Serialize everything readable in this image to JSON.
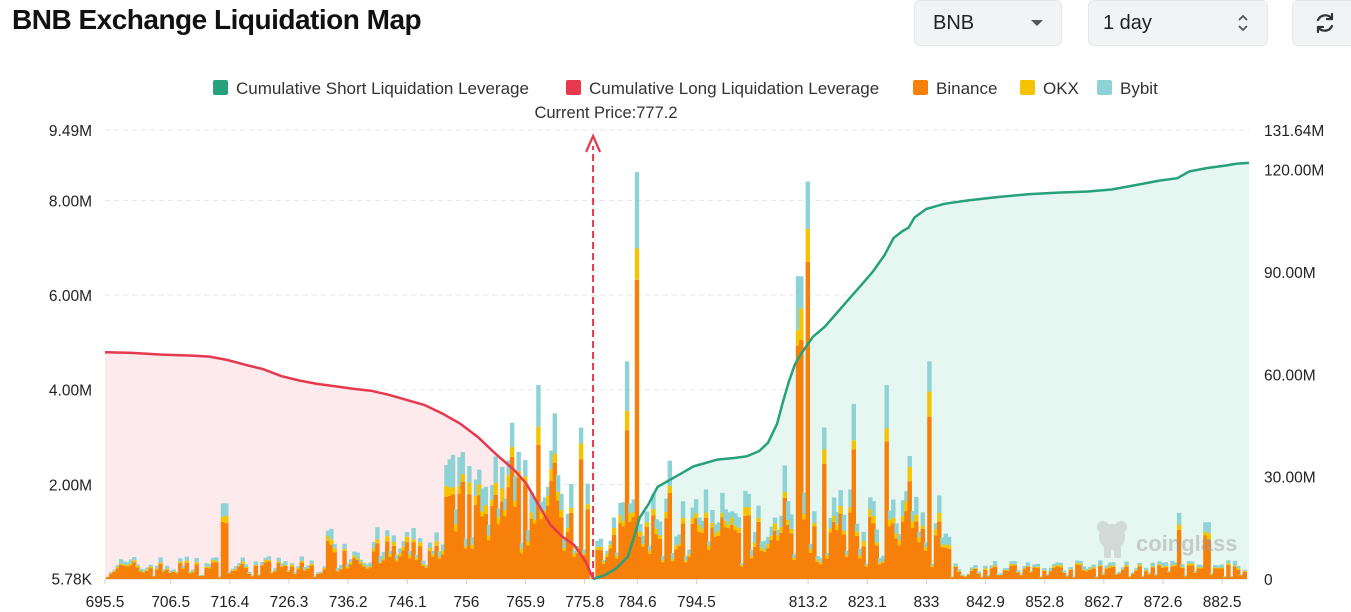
{
  "header": {
    "title": "BNB Exchange Liquidation Map",
    "coin_select": "BNB",
    "period_select": "1 day"
  },
  "colors": {
    "short": "#26a17b",
    "long": "#e8384f",
    "binance": "#f7800a",
    "okx": "#f5c400",
    "bybit": "#8dd3d6"
  },
  "watermark": "coinglass",
  "chart_data": {
    "type": "bar",
    "current_price_label": "Current Price:777.2",
    "current_price": 777.2,
    "legend": [
      {
        "key": "short",
        "label": "Cumulative Short Liquidation Leverage",
        "color": "#26a17b"
      },
      {
        "key": "long",
        "label": "Cumulative Long Liquidation Leverage",
        "color": "#e8384f"
      },
      {
        "key": "binance",
        "label": "Binance",
        "color": "#f7800a"
      },
      {
        "key": "okx",
        "label": "OKX",
        "color": "#f5c400"
      },
      {
        "key": "bybit",
        "label": "Bybit",
        "color": "#8dd3d6"
      }
    ],
    "x_range": [
      695.5,
      887.0
    ],
    "x_ticks": [
      "695.5",
      "706.5",
      "716.4",
      "726.3",
      "736.2",
      "746.1",
      "756",
      "765.9",
      "775.8",
      "784.6",
      "794.5",
      "813.2",
      "823.1",
      "833",
      "842.9",
      "852.8",
      "862.7",
      "872.6",
      "882.5"
    ],
    "x_tick_values": [
      695.5,
      706.5,
      716.4,
      726.3,
      736.2,
      746.1,
      756,
      765.9,
      775.8,
      784.6,
      794.5,
      813.2,
      823.1,
      833,
      842.9,
      852.8,
      862.7,
      872.6,
      882.5
    ],
    "y_left": {
      "ticks": [
        "9.49M",
        "8.00M",
        "6.00M",
        "4.00M",
        "2.00M",
        "5.78K"
      ],
      "tick_values": [
        9.49,
        8,
        6,
        4,
        2,
        0.00578
      ],
      "range": [
        0,
        9.49
      ],
      "unit": "M"
    },
    "y_right": {
      "ticks": [
        "131.64M",
        "120.00M",
        "90.00M",
        "60.00M",
        "30.00M",
        "0"
      ],
      "tick_values": [
        131.64,
        120,
        90,
        60,
        30,
        0
      ],
      "range": [
        0,
        131.64
      ],
      "unit": "M"
    },
    "long_cumulative": [
      [
        695.5,
        66.5
      ],
      [
        700,
        66.3
      ],
      [
        705,
        65.8
      ],
      [
        710,
        65.5
      ],
      [
        713,
        65.2
      ],
      [
        716,
        64.2
      ],
      [
        719,
        62.8
      ],
      [
        722,
        61.5
      ],
      [
        725,
        59.5
      ],
      [
        728,
        58.2
      ],
      [
        731,
        57.2
      ],
      [
        734,
        56.5
      ],
      [
        737,
        55.8
      ],
      [
        740,
        55.2
      ],
      [
        743,
        54.0
      ],
      [
        746,
        52.5
      ],
      [
        749,
        51.0
      ],
      [
        752,
        48.5
      ],
      [
        755,
        45.5
      ],
      [
        758,
        41.5
      ],
      [
        761,
        36.5
      ],
      [
        764,
        32.0
      ],
      [
        766,
        28.0
      ],
      [
        768,
        22.0
      ],
      [
        770,
        16.0
      ],
      [
        772,
        12.5
      ],
      [
        774,
        10.0
      ],
      [
        776,
        5.0
      ],
      [
        777.2,
        0
      ]
    ],
    "short_cumulative": [
      [
        777.2,
        0
      ],
      [
        779,
        1.0
      ],
      [
        781,
        3.0
      ],
      [
        783,
        6.5
      ],
      [
        784,
        12.0
      ],
      [
        785,
        18.0
      ],
      [
        786.5,
        22.0
      ],
      [
        788,
        27.0
      ],
      [
        790,
        29.0
      ],
      [
        792,
        31.0
      ],
      [
        794,
        33.0
      ],
      [
        796,
        34.0
      ],
      [
        798,
        35.0
      ],
      [
        801,
        35.5
      ],
      [
        803,
        36.0
      ],
      [
        805,
        37.5
      ],
      [
        806.5,
        40.0
      ],
      [
        808,
        45.5
      ],
      [
        809,
        52.0
      ],
      [
        810,
        58.0
      ],
      [
        811,
        63.0
      ],
      [
        812,
        66.0
      ],
      [
        814,
        71.0
      ],
      [
        816,
        74.0
      ],
      [
        818,
        78.0
      ],
      [
        820,
        82.0
      ],
      [
        822,
        86.0
      ],
      [
        824,
        90.0
      ],
      [
        826,
        95.0
      ],
      [
        827.5,
        100.0
      ],
      [
        829,
        102.0
      ],
      [
        830,
        103.0
      ],
      [
        831,
        106.0
      ],
      [
        833,
        108.5
      ],
      [
        836,
        110.0
      ],
      [
        840,
        111.0
      ],
      [
        845,
        112.0
      ],
      [
        850,
        112.8
      ],
      [
        855,
        113.3
      ],
      [
        860,
        113.6
      ],
      [
        864,
        114.2
      ],
      [
        868,
        115.5
      ],
      [
        872,
        116.8
      ],
      [
        875,
        117.5
      ],
      [
        877,
        119.5
      ],
      [
        880,
        120.5
      ],
      [
        883,
        121.2
      ],
      [
        885,
        121.8
      ],
      [
        887,
        122.0
      ]
    ]
  }
}
